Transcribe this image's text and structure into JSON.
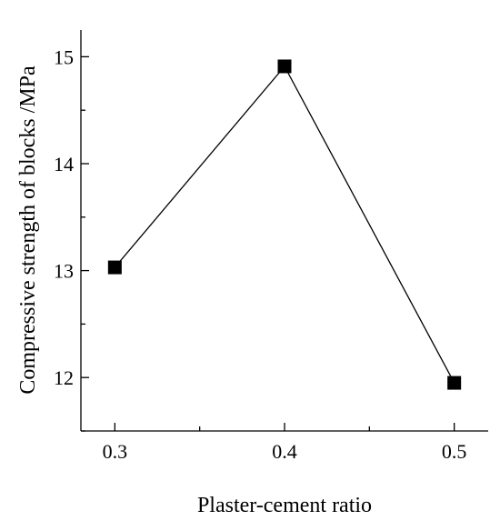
{
  "chart_data": {
    "type": "line",
    "title": "",
    "xlabel": "Plaster-cement ratio",
    "ylabel": "Compressive strength of blocks /MPa",
    "x": [
      0.3,
      0.4,
      0.5
    ],
    "x_ticks": [
      "0.3",
      "0.4",
      "0.5"
    ],
    "y_ticks": [
      "12",
      "13",
      "14",
      "15"
    ],
    "xlim": [
      0.28,
      0.52
    ],
    "ylim": [
      11.5,
      15.25
    ],
    "grid": false,
    "legend": "none",
    "marker": "square",
    "series": [
      {
        "values": [
          13.03,
          14.91,
          11.95
        ],
        "color": "#000000"
      }
    ]
  }
}
